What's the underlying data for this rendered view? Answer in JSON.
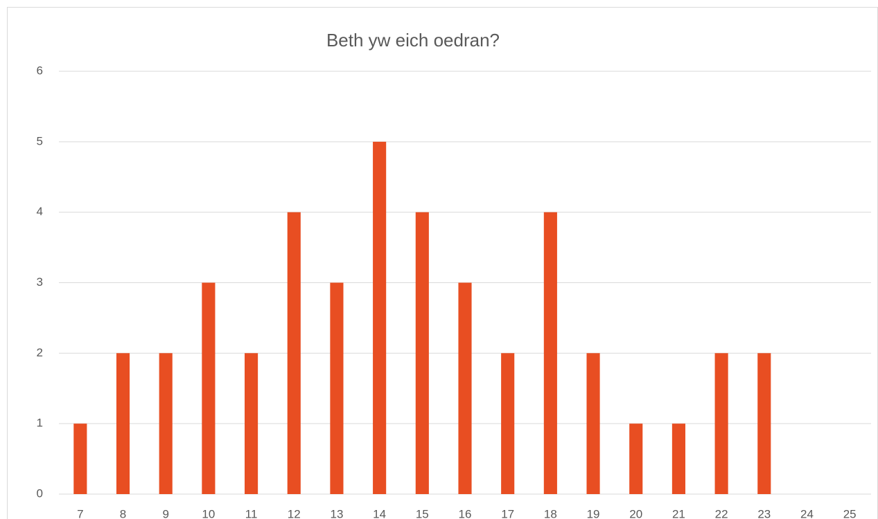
{
  "chart_data": {
    "type": "bar",
    "title": "Beth yw eich oedran?",
    "categories": [
      "7",
      "8",
      "9",
      "10",
      "11",
      "12",
      "13",
      "14",
      "15",
      "16",
      "17",
      "18",
      "19",
      "20",
      "21",
      "22",
      "23",
      "24",
      "25"
    ],
    "values": [
      1,
      2,
      2,
      3,
      2,
      4,
      3,
      5,
      4,
      3,
      2,
      4,
      2,
      1,
      1,
      2,
      2,
      0,
      0
    ],
    "color": "#e84e22",
    "ylim": [
      0,
      6
    ],
    "yticks": [
      0,
      1,
      2,
      3,
      4,
      5,
      6
    ],
    "grid": true
  }
}
